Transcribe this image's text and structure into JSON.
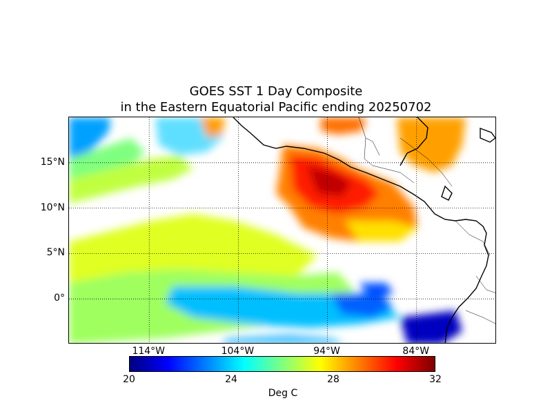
{
  "title": {
    "line1": "GOES SST 1 Day Composite",
    "line2": "in the Eastern Equatorial Pacific ending 20250702"
  },
  "map": {
    "lat_range": [
      -5,
      20
    ],
    "lon_range": [
      -123,
      -75
    ],
    "lat_labels": [
      {
        "lat": 15,
        "text": "15°N"
      },
      {
        "lat": 10,
        "text": "10°N"
      },
      {
        "lat": 5,
        "text": "5°N"
      },
      {
        "lat": 0,
        "text": "0°"
      }
    ],
    "lon_labels": [
      {
        "lon": -114,
        "text": "114°W"
      },
      {
        "lon": -104,
        "text": "104°W"
      },
      {
        "lon": -94,
        "text": "94°W"
      },
      {
        "lon": -84,
        "text": "84°W"
      }
    ],
    "gridlines": "dotted",
    "colormap": "jet"
  },
  "colorbar": {
    "vmin": 20,
    "vmax": 32,
    "ticks": [
      "20",
      "24",
      "28",
      "32"
    ],
    "label": "Deg C",
    "colors": [
      "#00007f",
      "#0000ff",
      "#007fff",
      "#00ffff",
      "#7fff7f",
      "#ffff00",
      "#ff7f00",
      "#ff0000",
      "#7f0000"
    ]
  }
}
